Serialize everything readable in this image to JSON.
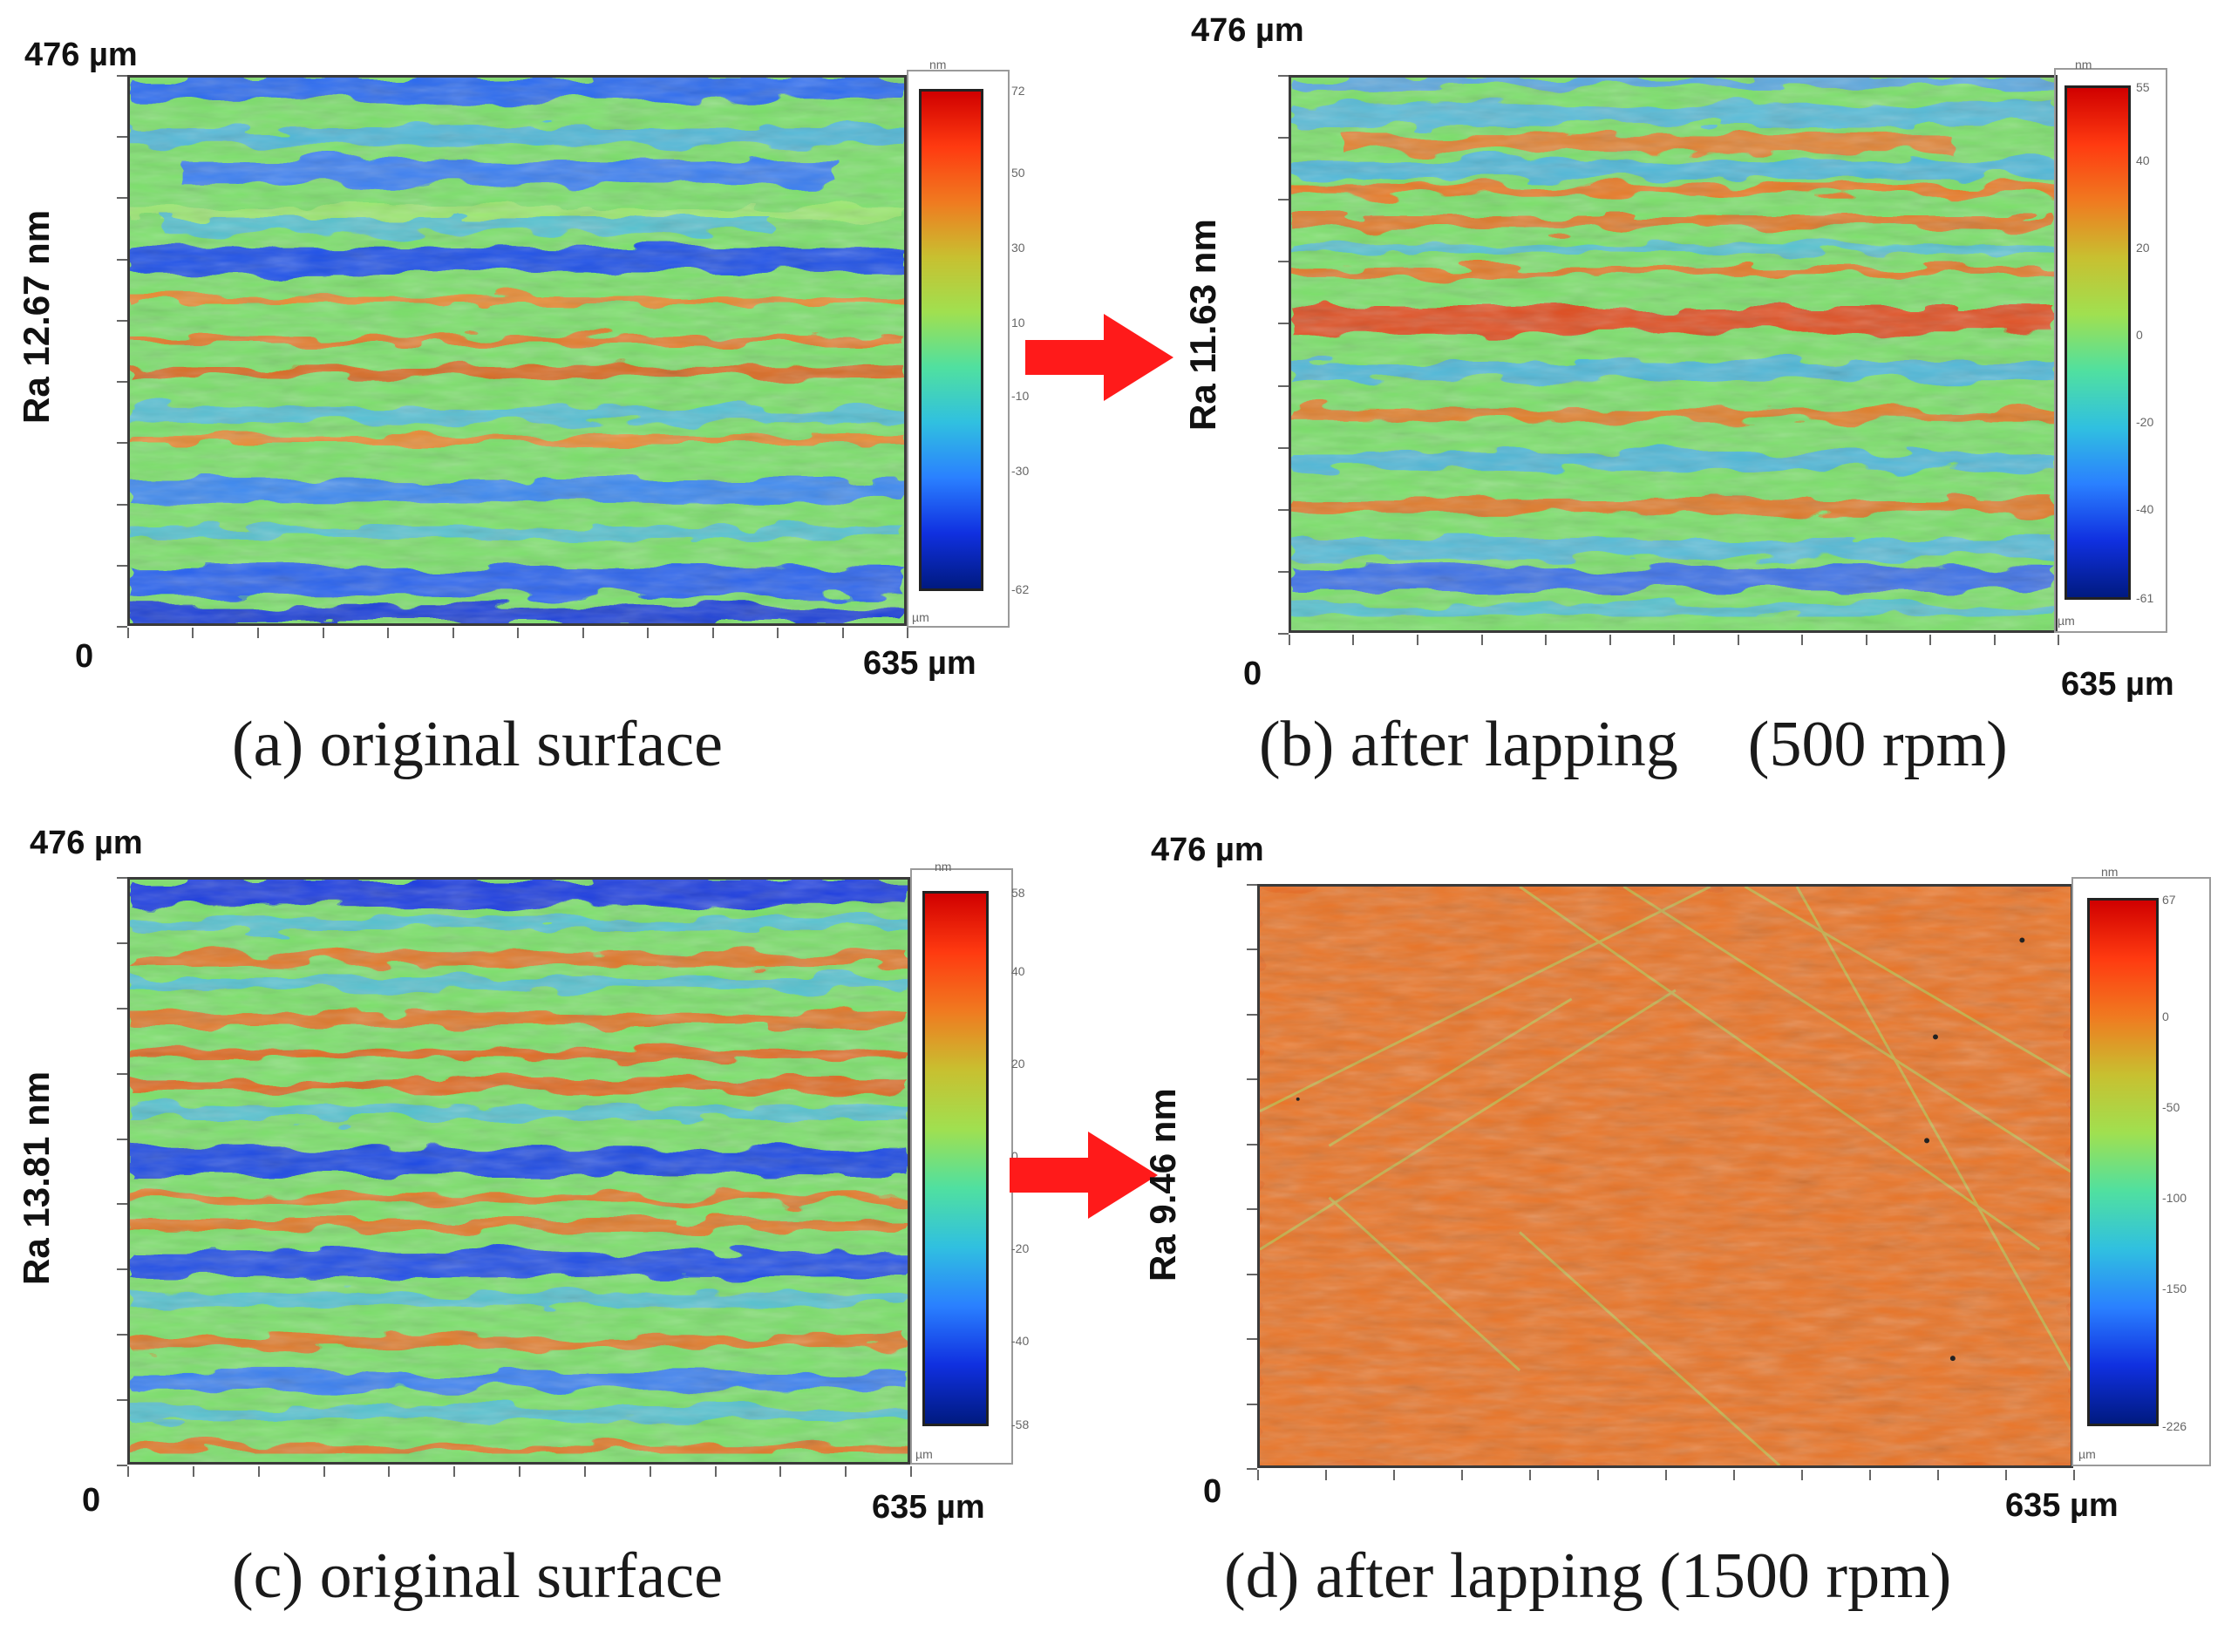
{
  "figure": {
    "panels": [
      {
        "id": "a",
        "y_top_label": "476 µm",
        "origin_label": "0",
        "x_end_label": "635 µm",
        "roughness_label": "Ra 12.67 nm",
        "caption": "(a) original surface",
        "colorbar_unit_top": "nm",
        "colorbar_unit_bottom": "µm",
        "colorbar_ticks": [
          "72",
          "50",
          "30",
          "10",
          "-10",
          "-30",
          "-62"
        ],
        "pattern": "horizontal-bands"
      },
      {
        "id": "b",
        "y_top_label": "476 µm",
        "origin_label": "0",
        "x_end_label": "635 µm",
        "roughness_label": "Ra 11.63 nm",
        "caption_part1": "(b) after lapping",
        "caption_part2": "(500 rpm)",
        "colorbar_unit_top": "nm",
        "colorbar_unit_bottom": "µm",
        "colorbar_ticks": [
          "55",
          "40",
          "20",
          "0",
          "-20",
          "-40",
          "-61"
        ],
        "pattern": "horizontal-bands-warm"
      },
      {
        "id": "c",
        "y_top_label": "476 µm",
        "origin_label": "0",
        "x_end_label": "635 µm",
        "roughness_label": "Ra 13.81 nm",
        "caption": "(c) original surface",
        "colorbar_unit_top": "nm",
        "colorbar_unit_bottom": "µm",
        "colorbar_ticks": [
          "58",
          "40",
          "20",
          "0",
          "-20",
          "-40",
          "-58"
        ],
        "pattern": "horizontal-bands"
      },
      {
        "id": "d",
        "y_top_label": "476 µm",
        "origin_label": "0",
        "x_end_label": "635 µm",
        "roughness_label": "Ra 9.46 nm",
        "caption": "(d) after lapping (1500 rpm)",
        "colorbar_unit_top": "nm",
        "colorbar_unit_bottom": "µm",
        "colorbar_ticks": [
          "67",
          "0",
          "-50",
          "-100",
          "-150",
          "-226"
        ],
        "pattern": "smooth-red-scratches"
      }
    ],
    "arrow_color": "#ff1a1a"
  }
}
